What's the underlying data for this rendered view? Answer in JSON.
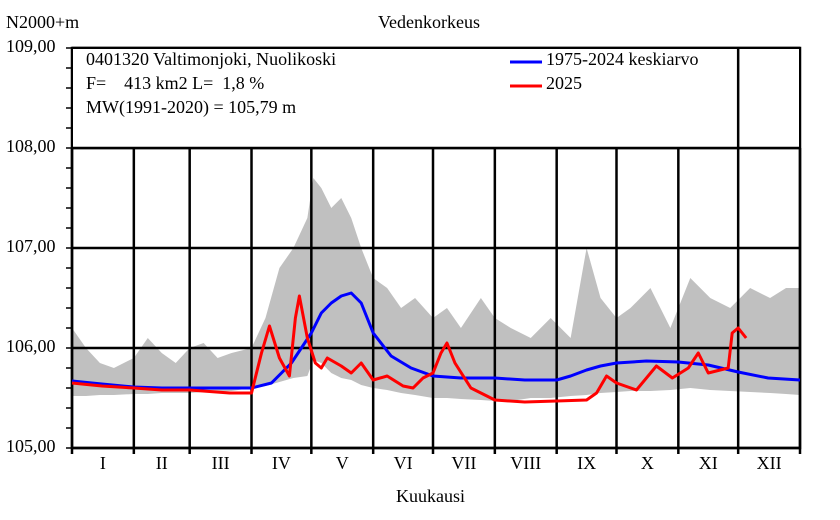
{
  "chart_data": {
    "type": "line",
    "title": "Vedenkorkeus",
    "ylabel": "N2000+m",
    "xlabel": "Kuukausi",
    "ylim": [
      105,
      109
    ],
    "xlim": [
      0,
      365
    ],
    "yticks": [
      "105,00",
      "106,00",
      "107,00",
      "108,00",
      "109,00"
    ],
    "ytick_values": [
      105,
      106,
      107,
      108,
      109
    ],
    "months": [
      "I",
      "II",
      "III",
      "IV",
      "V",
      "VI",
      "VII",
      "VIII",
      "IX",
      "X",
      "XI",
      "XII"
    ],
    "info": [
      "0401320 Valtimonjoki, Nuolikoski",
      "F=    413 km2 L=  1,8 %",
      "MW(1991-2020) = 105,79 m"
    ],
    "legend": [
      {
        "name": "1975-2024 keskiarvo",
        "color": "#0000ff"
      },
      {
        "name": "2025",
        "color": "#ff0000"
      }
    ],
    "envelope": {
      "color": "#c0c0c0",
      "x": [
        0,
        7,
        14,
        21,
        31,
        38,
        45,
        52,
        59,
        66,
        73,
        80,
        90,
        97,
        104,
        111,
        118,
        121,
        125,
        130,
        135,
        140,
        145,
        151,
        158,
        165,
        172,
        181,
        188,
        195,
        205,
        212,
        220,
        230,
        240,
        250,
        258,
        265,
        273,
        280,
        290,
        300,
        310,
        320,
        330,
        340,
        350,
        358,
        365
      ],
      "max": [
        106.2,
        106.0,
        105.85,
        105.8,
        105.9,
        106.1,
        105.95,
        105.85,
        106.0,
        106.05,
        105.9,
        105.95,
        106.0,
        106.3,
        106.8,
        107.0,
        107.3,
        107.7,
        107.6,
        107.4,
        107.5,
        107.3,
        107.0,
        106.7,
        106.6,
        106.4,
        106.5,
        106.3,
        106.4,
        106.2,
        106.5,
        106.3,
        106.2,
        106.1,
        106.3,
        106.1,
        107.0,
        106.5,
        106.3,
        106.4,
        106.6,
        106.2,
        106.7,
        106.5,
        106.4,
        106.6,
        106.5,
        106.6,
        106.6
      ],
      "min": [
        105.52,
        105.52,
        105.53,
        105.53,
        105.54,
        105.54,
        105.55,
        105.55,
        105.55,
        105.56,
        105.56,
        105.57,
        105.6,
        105.62,
        105.66,
        105.7,
        105.72,
        105.88,
        105.85,
        105.75,
        105.7,
        105.68,
        105.63,
        105.6,
        105.58,
        105.55,
        105.53,
        105.5,
        105.5,
        105.49,
        105.48,
        105.47,
        105.47,
        105.5,
        105.5,
        105.52,
        105.53,
        105.55,
        105.56,
        105.57,
        105.57,
        105.58,
        105.6,
        105.58,
        105.57,
        105.56,
        105.55,
        105.54,
        105.53
      ]
    },
    "series": [
      {
        "name": "1975-2024 keskiarvo",
        "color": "#0000ff",
        "x": [
          0,
          15,
          31,
          45,
          59,
          75,
          90,
          100,
          110,
          120,
          125,
          130,
          135,
          140,
          145,
          151,
          160,
          170,
          181,
          195,
          212,
          227,
          243,
          250,
          258,
          265,
          273,
          288,
          304,
          319,
          334,
          349,
          365
        ],
        "y": [
          105.67,
          105.64,
          105.61,
          105.6,
          105.6,
          105.6,
          105.6,
          105.65,
          105.85,
          106.15,
          106.35,
          106.45,
          106.52,
          106.55,
          106.45,
          106.15,
          105.92,
          105.8,
          105.72,
          105.7,
          105.7,
          105.68,
          105.68,
          105.72,
          105.78,
          105.82,
          105.85,
          105.87,
          105.86,
          105.83,
          105.76,
          105.7,
          105.68
        ]
      },
      {
        "name": "2025",
        "color": "#ff0000",
        "x": [
          0,
          15,
          31,
          45,
          59,
          79,
          90,
          95,
          99,
          104,
          109,
          112,
          114,
          118,
          122,
          125,
          128,
          135,
          140,
          145,
          151,
          158,
          166,
          171,
          176,
          181,
          185,
          188,
          192,
          200,
          212,
          227,
          243,
          258,
          263,
          268,
          273,
          283,
          293,
          301,
          309,
          314,
          319,
          329,
          331,
          334,
          338
        ],
        "y": [
          105.65,
          105.62,
          105.6,
          105.58,
          105.58,
          105.55,
          105.55,
          105.95,
          106.22,
          105.9,
          105.72,
          106.3,
          106.52,
          106.1,
          105.85,
          105.8,
          105.9,
          105.82,
          105.75,
          105.85,
          105.68,
          105.72,
          105.62,
          105.6,
          105.7,
          105.75,
          105.95,
          106.05,
          105.85,
          105.6,
          105.48,
          105.46,
          105.47,
          105.48,
          105.55,
          105.72,
          105.65,
          105.58,
          105.82,
          105.7,
          105.8,
          105.95,
          105.75,
          105.8,
          106.15,
          106.2,
          106.1
        ]
      }
    ]
  }
}
